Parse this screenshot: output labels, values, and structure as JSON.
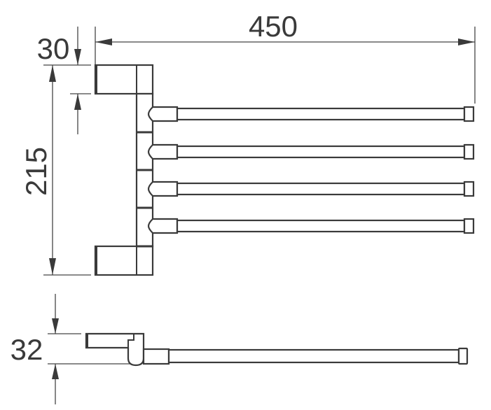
{
  "drawing": {
    "dimensions": {
      "overall_length": "450",
      "bracket_height": "30",
      "overall_height": "215",
      "depth": "32"
    },
    "arm_count": 4,
    "line_color": "#3a3a3a"
  }
}
